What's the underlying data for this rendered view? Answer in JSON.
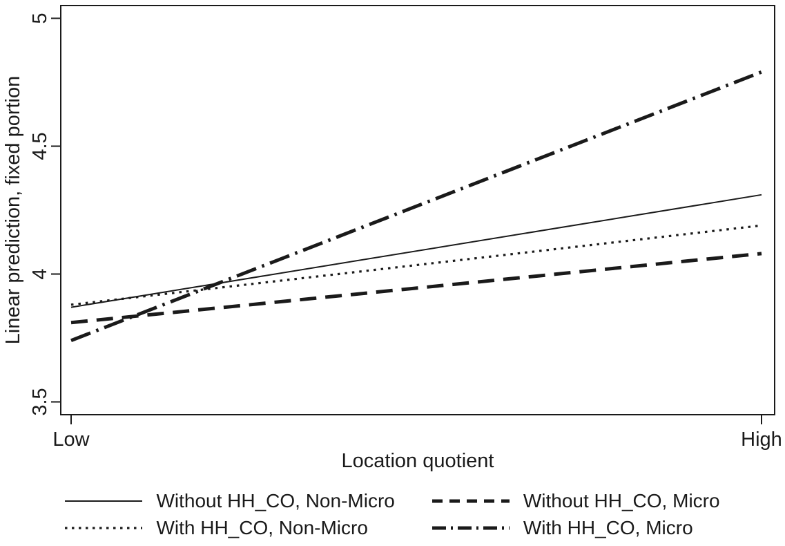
{
  "figure": {
    "background": "#ffffff",
    "ink_color": "#1a1a1a"
  },
  "chart_data": {
    "type": "line",
    "title": "",
    "xlabel": "Location quotient",
    "ylabel": "Linear prediction, fixed portion",
    "x_tick_labels": [
      "Low",
      "High"
    ],
    "y_ticks": [
      3.5,
      4,
      4.5,
      5
    ],
    "y_tick_labels": [
      "3.5",
      "4",
      "4.5",
      "5"
    ],
    "ylim": [
      3.45,
      5.05
    ],
    "x": [
      "Low",
      "High"
    ],
    "grid": false,
    "frame": "box",
    "line_color": "#1a1a1a",
    "legend_position": "bottom",
    "legend_columns": 2,
    "series": [
      {
        "name": "Without HH_CO, Non-Micro",
        "dash": "solid",
        "line_width": 2,
        "values": [
          3.87,
          4.31
        ]
      },
      {
        "name": "Without HH_CO, Micro",
        "dash": "dashed",
        "line_width": 5,
        "values": [
          3.81,
          4.08
        ]
      },
      {
        "name": "With HH_CO, Non-Micro",
        "dash": "dotted",
        "line_width": 3.2,
        "values": [
          3.88,
          4.19
        ]
      },
      {
        "name": "With HH_CO, Micro",
        "dash": "dashdot",
        "line_width": 5,
        "values": [
          3.74,
          4.79
        ]
      }
    ]
  }
}
